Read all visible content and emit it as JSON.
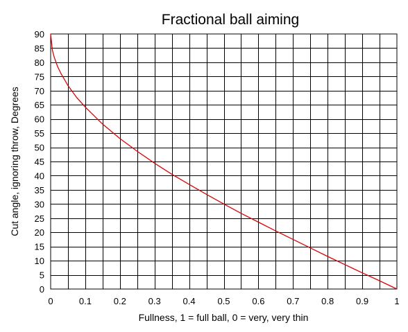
{
  "chart_data": {
    "type": "line",
    "title": "Fractional ball aiming",
    "xlabel": "Fullness, 1 = full ball, 0 = very, very thin",
    "ylabel": "Cut angle, ignoring throw, Degrees",
    "xlim": [
      0,
      1
    ],
    "ylim": [
      0,
      90
    ],
    "xticks": [
      "0",
      "0.1",
      "0.2",
      "0.3",
      "0.4",
      "0.5",
      "0.6",
      "0.7",
      "0.8",
      "0.9",
      "1"
    ],
    "yticks": [
      "0",
      "5",
      "10",
      "15",
      "20",
      "25",
      "30",
      "35",
      "40",
      "45",
      "50",
      "55",
      "60",
      "65",
      "70",
      "75",
      "80",
      "85",
      "90"
    ],
    "x_gridlines": 20,
    "y_gridlines": 18,
    "grid": true,
    "legend": "none",
    "series_color": "#e00000",
    "series": [
      {
        "x": [
          0,
          0.005,
          0.01,
          0.02,
          0.03,
          0.05,
          0.075,
          0.1,
          0.15,
          0.2,
          0.25,
          0.3,
          0.35,
          0.4,
          0.45,
          0.5,
          0.55,
          0.6,
          0.65,
          0.7,
          0.75,
          0.8,
          0.85,
          0.9,
          0.95,
          1
        ],
        "y": [
          90,
          84.3,
          81.9,
          78.5,
          76.0,
          71.8,
          67.6,
          64.2,
          58.2,
          53.1,
          48.6,
          44.4,
          40.5,
          36.9,
          33.4,
          30.0,
          26.7,
          23.6,
          20.5,
          17.5,
          14.5,
          11.5,
          8.6,
          5.7,
          2.9,
          0
        ]
      }
    ]
  }
}
